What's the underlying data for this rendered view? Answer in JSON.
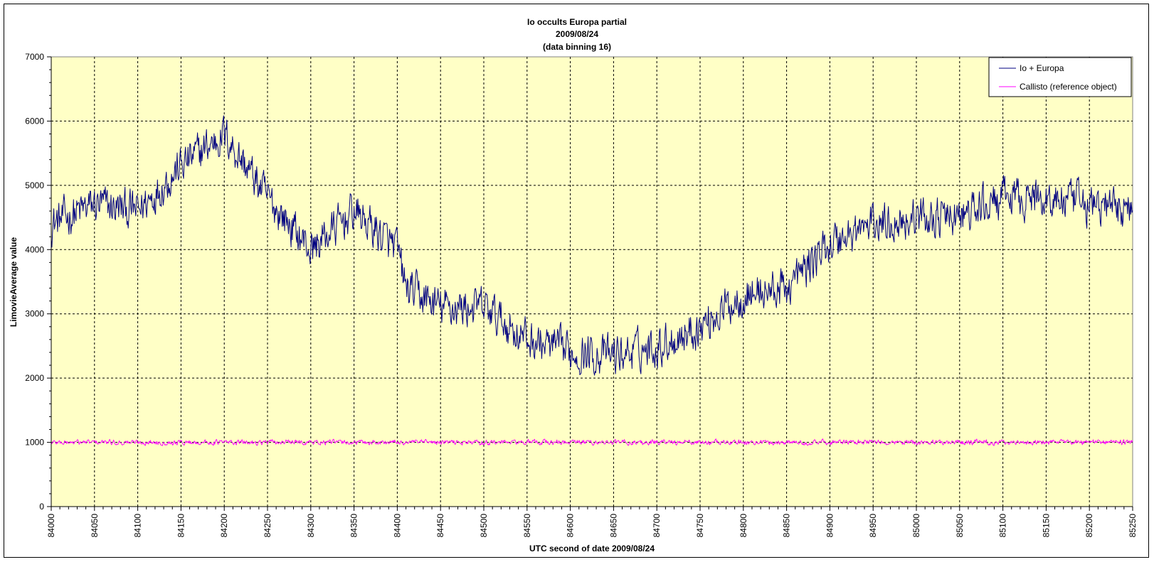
{
  "chart_data": {
    "type": "line",
    "title": [
      "Io occults Europa partial",
      "2009/08/24",
      "(data binning 16)"
    ],
    "xlabel": "UTC second  of date 2009/08/24",
    "ylabel": "LimovieAverage value",
    "xlim": [
      84000,
      85250
    ],
    "ylim": [
      0,
      7000
    ],
    "x_major_step": 50,
    "y_major_step": 1000,
    "grid": true,
    "plot_background": "#ffffc6",
    "legend_position": "top-right",
    "xticks": [
      "84000",
      "84050",
      "84100",
      "84150",
      "84200",
      "84250",
      "84300",
      "84350",
      "84400",
      "84450",
      "84500",
      "84550",
      "84600",
      "84650",
      "84700",
      "84750",
      "84800",
      "84850",
      "84900",
      "84950",
      "85000",
      "85050",
      "85100",
      "85150",
      "85200",
      "85250"
    ],
    "yticks": [
      "0",
      "1000",
      "2000",
      "3000",
      "4000",
      "5000",
      "6000",
      "7000"
    ],
    "series": [
      {
        "name": "Io + Europa",
        "color": "#000080",
        "noise_amplitude": 350,
        "trend": [
          [
            84000,
            4400
          ],
          [
            84050,
            4700
          ],
          [
            84100,
            4600
          ],
          [
            84150,
            5300
          ],
          [
            84200,
            5800
          ],
          [
            84250,
            4800
          ],
          [
            84300,
            4000
          ],
          [
            84350,
            4600
          ],
          [
            84400,
            4000
          ],
          [
            84410,
            3400
          ],
          [
            84450,
            3100
          ],
          [
            84500,
            3100
          ],
          [
            84550,
            2600
          ],
          [
            84600,
            2400
          ],
          [
            84650,
            2350
          ],
          [
            84700,
            2500
          ],
          [
            84750,
            2800
          ],
          [
            84800,
            3300
          ],
          [
            84850,
            3400
          ],
          [
            84900,
            4100
          ],
          [
            84950,
            4400
          ],
          [
            85000,
            4500
          ],
          [
            85050,
            4500
          ],
          [
            85100,
            4800
          ],
          [
            85150,
            4800
          ],
          [
            85200,
            4700
          ],
          [
            85250,
            4650
          ]
        ]
      },
      {
        "name": "Callisto (reference object)",
        "color": "#ff00ff",
        "noise_amplitude": 45,
        "trend": [
          [
            84000,
            1000
          ],
          [
            85250,
            1000
          ]
        ]
      }
    ]
  }
}
